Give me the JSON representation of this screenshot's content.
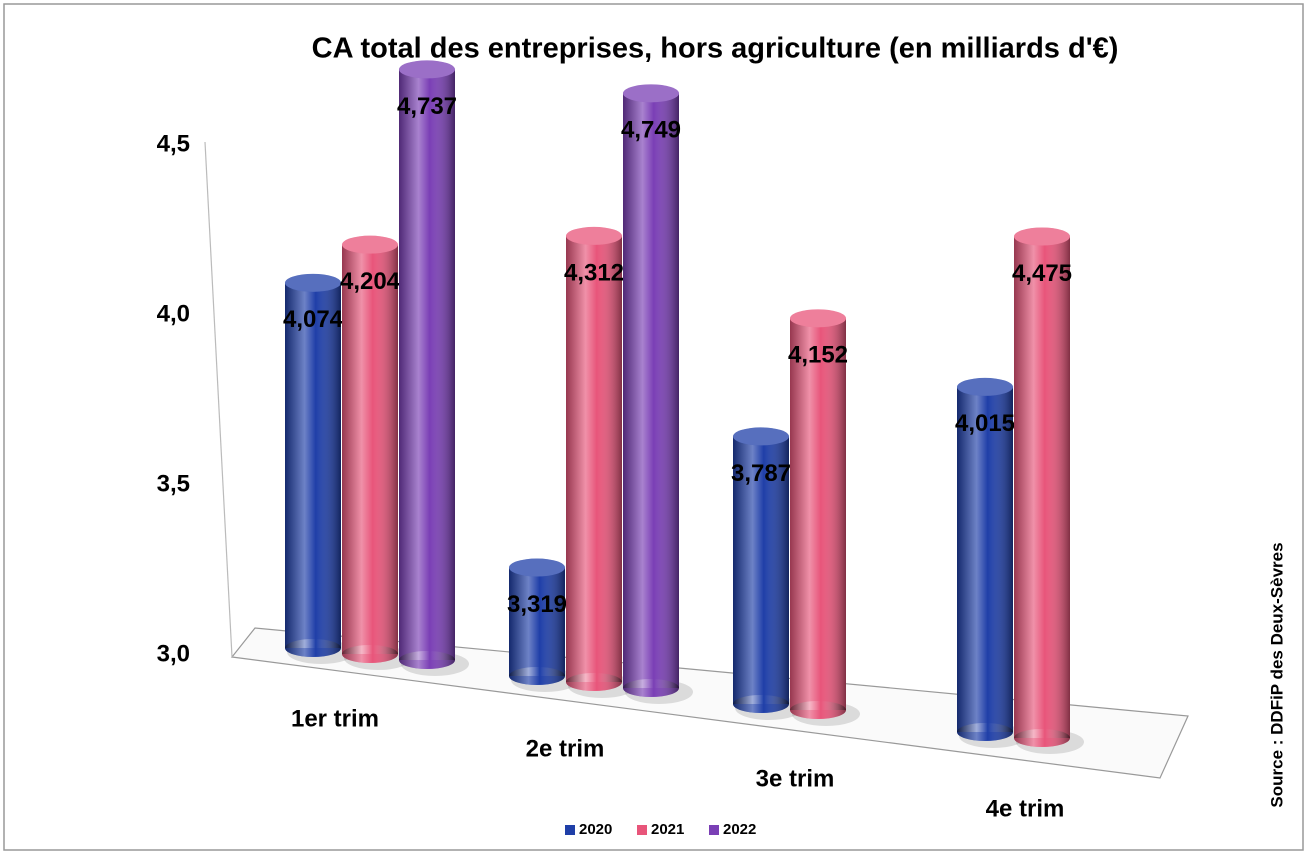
{
  "chart_data": {
    "type": "bar3d",
    "title": "CA total des entreprises, hors agriculture (en milliards d'€)",
    "source": "Source : DDFiP des Deux-Sèvres",
    "categories": [
      "1er trim",
      "2e trim",
      "3e trim",
      "4e trim"
    ],
    "series": [
      {
        "name": "2020",
        "color": "#1f3fa8",
        "values": [
          4.074,
          3.319,
          3.787,
          4.015
        ],
        "value_labels": [
          "4,074",
          "3,319",
          "3,787",
          "4,015"
        ]
      },
      {
        "name": "2021",
        "color": "#e8557a",
        "values": [
          4.204,
          4.312,
          4.152,
          4.475
        ],
        "value_labels": [
          "4,204",
          "4,312",
          "4,152",
          "4,475"
        ]
      },
      {
        "name": "2022",
        "color": "#7a3fb5",
        "values": [
          4.737,
          4.749,
          null,
          null
        ],
        "value_labels": [
          "4,737",
          "4,749",
          null,
          null
        ]
      }
    ],
    "ylim": [
      3.0,
      4.5
    ],
    "yticks": [
      {
        "value": 3.0,
        "label": "3,0"
      },
      {
        "value": 3.5,
        "label": "3,5"
      },
      {
        "value": 4.0,
        "label": "4,0"
      },
      {
        "value": 4.5,
        "label": "4,5"
      }
    ],
    "legend": "bottom"
  }
}
